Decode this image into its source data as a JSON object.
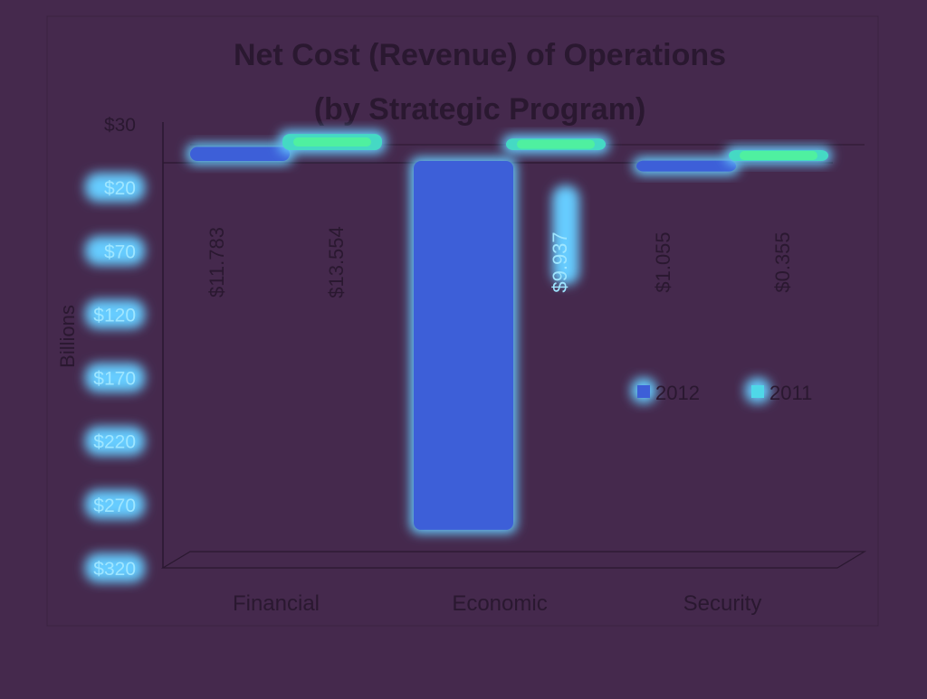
{
  "colors": {
    "background": "#45294d",
    "frame": "#2f1c36",
    "text": "#2a1830",
    "glow": "#66ccff",
    "series_2012": "#3d5fd8",
    "series_2011_core": "#4ff0a0"
  },
  "chart_data": {
    "type": "bar",
    "title": "Net Cost (Revenue) of Operations",
    "subtitle": "(by Strategic Program)",
    "ylabel": "Billions",
    "ylim": [
      -320,
      30
    ],
    "yticks": [
      30,
      -20,
      -70,
      -120,
      -170,
      -220,
      -270,
      -320
    ],
    "ytick_labels": [
      "$30",
      "$20",
      "$70",
      "$120",
      "$170",
      "$220",
      "$270",
      "$320"
    ],
    "categories": [
      "Financial",
      "Economic",
      "Security"
    ],
    "series": [
      {
        "name": "2012",
        "values": [
          11.783,
          -290,
          1.055
        ],
        "labels": [
          "$11.783",
          "",
          "$1.055"
        ]
      },
      {
        "name": "2011",
        "values": [
          13.554,
          9.937,
          0.355
        ],
        "labels": [
          "$13.554",
          "$9.937",
          "$0.355"
        ]
      }
    ],
    "legend": [
      "2012",
      "2011"
    ],
    "legend_position": "right",
    "grid": false
  }
}
